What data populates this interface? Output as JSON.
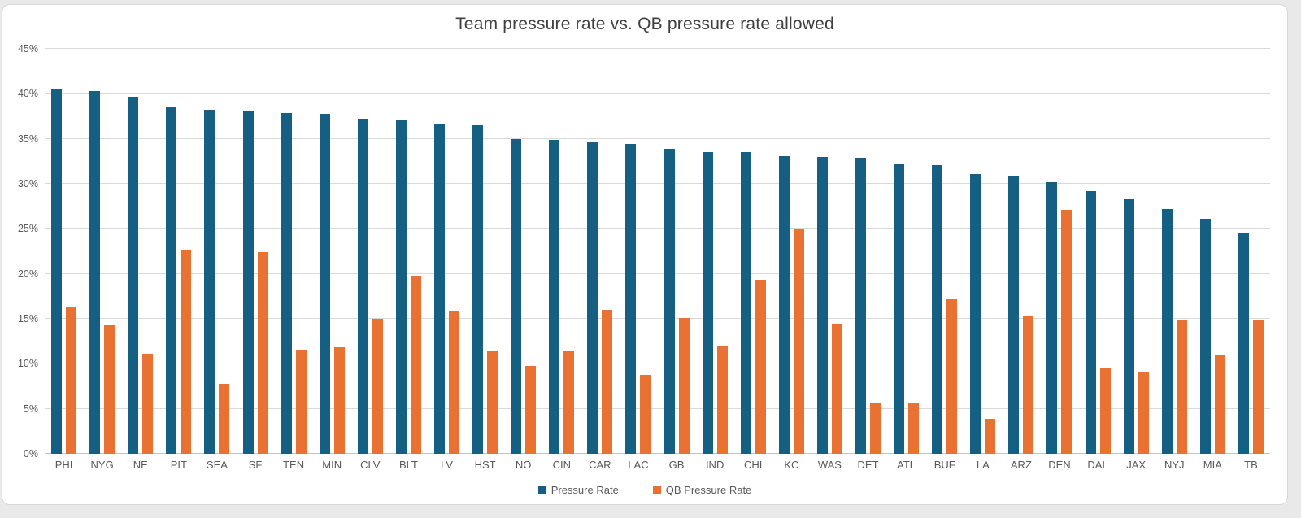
{
  "chart_data": {
    "type": "bar",
    "title": "Team pressure rate vs. QB pressure rate allowed",
    "xlabel": "",
    "ylabel": "",
    "ylim": [
      0,
      45
    ],
    "ytick_step": 5,
    "ytick_suffix": "%",
    "grid": "horizontal",
    "legend_position": "bottom",
    "categories": [
      "PHI",
      "NYG",
      "NE",
      "PIT",
      "SEA",
      "SF",
      "TEN",
      "MIN",
      "CLV",
      "BLT",
      "LV",
      "HST",
      "NO",
      "CIN",
      "CAR",
      "LAC",
      "GB",
      "IND",
      "CHI",
      "KC",
      "WAS",
      "DET",
      "ATL",
      "BUF",
      "LA",
      "ARZ",
      "DEN",
      "DAL",
      "JAX",
      "NYJ",
      "MIA",
      "TB"
    ],
    "series": [
      {
        "name": "Pressure Rate",
        "color": "#156082",
        "values": [
          40.5,
          40.3,
          39.7,
          38.6,
          38.2,
          38.1,
          37.9,
          37.8,
          37.2,
          37.1,
          36.6,
          36.5,
          35.0,
          34.9,
          34.6,
          34.4,
          33.9,
          33.5,
          33.5,
          33.1,
          33.0,
          32.9,
          32.2,
          32.1,
          31.1,
          30.8,
          30.2,
          29.2,
          28.3,
          27.2,
          26.1,
          24.5
        ]
      },
      {
        "name": "QB Pressure Rate",
        "color": "#E97132",
        "values": [
          16.4,
          14.3,
          11.1,
          22.6,
          7.8,
          22.4,
          11.5,
          11.8,
          15.0,
          19.7,
          15.9,
          11.4,
          9.8,
          11.4,
          16.0,
          8.8,
          15.1,
          12.0,
          19.3,
          24.9,
          14.5,
          5.7,
          5.6,
          17.2,
          3.9,
          15.4,
          27.1,
          9.5,
          9.1,
          14.9,
          10.9,
          14.8
        ]
      }
    ],
    "colors": {
      "gridline": "#d9d9d9",
      "zero_line": "#c3c3c3",
      "axis_text": "#595959",
      "title_text": "#3f3f3f",
      "background": "#ffffff"
    }
  }
}
